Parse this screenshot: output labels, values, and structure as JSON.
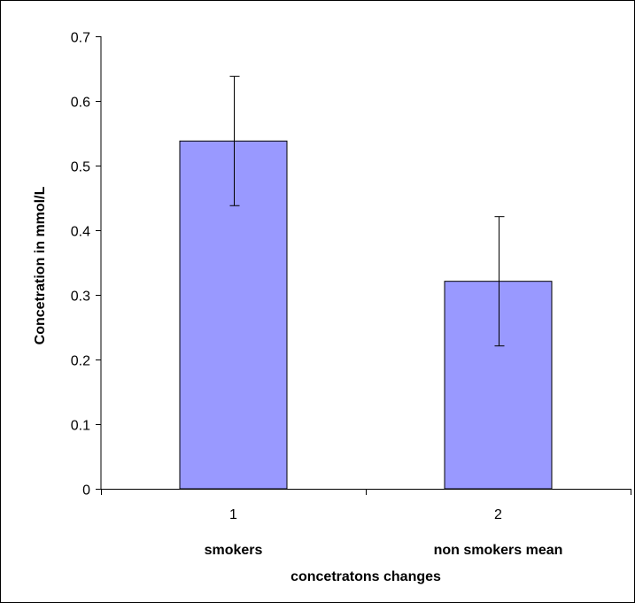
{
  "chart_data": {
    "type": "bar",
    "categories": [
      "1",
      "2"
    ],
    "category_sublabels": [
      "smokers",
      "non smokers mean"
    ],
    "values": [
      0.538,
      0.321
    ],
    "error_bars": [
      0.1,
      0.1
    ],
    "title": "",
    "xlabel": "concetratons changes",
    "ylabel": "Concetration in mmol/L",
    "ylim": [
      0,
      0.7
    ],
    "yticks": [
      "0",
      "0.1",
      "0.2",
      "0.3",
      "0.4",
      "0.5",
      "0.6",
      "0.7"
    ],
    "bar_color": "#9999ff",
    "grid": false,
    "legend": "none"
  }
}
